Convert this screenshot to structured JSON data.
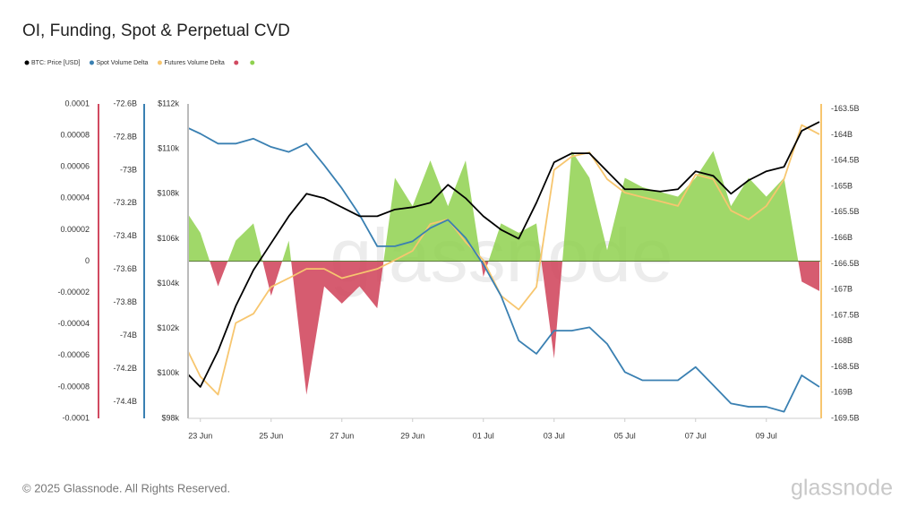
{
  "chart_data": {
    "type": "line",
    "title": "OI, Funding, Spot & Perpetual CVD",
    "categories": [
      null,
      "23 Jun",
      null,
      null,
      null,
      "25 Jun",
      null,
      null,
      null,
      "27 Jun",
      null,
      null,
      null,
      "29 Jun",
      null,
      null,
      null,
      "01 Jul",
      null,
      null,
      null,
      "03 Jul",
      null,
      null,
      null,
      "05 Jul",
      null,
      null,
      null,
      "07 Jul",
      null,
      null,
      null,
      "09 Jul",
      null,
      null,
      null
    ],
    "series": [
      {
        "type": "area",
        "axis": "y4",
        "color": "#8fd14f",
        "negative_color": "#d14a61",
        "values": [
          3.5e-05,
          1.8e-05,
          -1.6e-05,
          1.3e-05,
          2.4e-05,
          -2.2e-05,
          1.3e-05,
          -8.5e-05,
          -1.6e-05,
          -2.7e-05,
          -1.6e-05,
          -3e-05,
          5.3e-05,
          3.5e-05,
          6.4e-05,
          3.5e-05,
          6.4e-05,
          -1e-05,
          2.4e-05,
          1.8e-05,
          2.4e-05,
          -6.2e-05,
          7e-05,
          5.3e-05,
          7e-06,
          5.3e-05,
          4.7e-05,
          4.4e-05,
          4.1e-05,
          5.3e-05,
          7e-05,
          3.5e-05,
          5.3e-05,
          4.1e-05,
          5.3e-05,
          -1.3e-05,
          -1.9e-05
        ]
      },
      {
        "name": "Futures Volume Delta",
        "axis": "y2",
        "color": "#f7c66f",
        "values": [
          -167990000000,
          -168690000000,
          -169040000000,
          -167650000000,
          -167470000000,
          -166950000000,
          -166780000000,
          -166600000000,
          -166600000000,
          -166780000000,
          -166690000000,
          -166600000000,
          -166430000000,
          -166250000000,
          -165730000000,
          -165640000000,
          -166080000000,
          -166430000000,
          -167120000000,
          -167390000000,
          -166950000000,
          -164680000000,
          -164420000000,
          -164340000000,
          -164860000000,
          -165120000000,
          -165210000000,
          -165290000000,
          -165380000000,
          -164770000000,
          -164860000000,
          -165470000000,
          -165640000000,
          -165380000000,
          -164860000000,
          -163810000000,
          -163990000000
        ]
      },
      {
        "name": "Spot Volume Delta",
        "axis": "y3",
        "color": "#3a80b2",
        "values": [
          -72730000000,
          -72780000000,
          -72840000000,
          -72840000000,
          -72810000000,
          -72860000000,
          -72890000000,
          -72840000000,
          -72970000000,
          -73110000000,
          -73270000000,
          -73460000000,
          -73460000000,
          -73430000000,
          -73350000000,
          -73300000000,
          -73410000000,
          -73570000000,
          -73760000000,
          -74030000000,
          -74110000000,
          -73970000000,
          -73970000000,
          -73950000000,
          -74050000000,
          -74220000000,
          -74270000000,
          -74270000000,
          -74270000000,
          -74190000000,
          -74300000000,
          -74410000000,
          -74430000000,
          -74430000000,
          -74460000000,
          -74240000000,
          -74310000000
        ]
      },
      {
        "name": "BTC: Price [USD]",
        "axis": "y",
        "color": "#000000",
        "values": [
          100200,
          99400,
          101000,
          103000,
          104600,
          105800,
          107000,
          108000,
          107800,
          107400,
          107000,
          107000,
          107300,
          107400,
          107600,
          108400,
          107800,
          107000,
          106400,
          106000,
          107600,
          109400,
          109800,
          109800,
          109000,
          108200,
          108200,
          108100,
          108200,
          109000,
          108800,
          108000,
          108600,
          109000,
          109200,
          110800,
          111200
        ]
      }
    ],
    "ylim": [
      98000,
      112000
    ],
    "yticks": [
      {
        "value": 98000,
        "label": "$98k"
      },
      {
        "value": 100000,
        "label": "$100k"
      },
      {
        "value": 102000,
        "label": "$102k"
      },
      {
        "value": 104000,
        "label": "$104k"
      },
      {
        "value": 106000,
        "label": "$106k"
      },
      {
        "value": 108000,
        "label": "$108k"
      },
      {
        "value": 110000,
        "label": "$110k"
      },
      {
        "value": 112000,
        "label": "$112k"
      }
    ],
    "y2lim": [
      -169500000000,
      -163400000000
    ],
    "y2ticks": [
      {
        "value": -169500000000,
        "label": "-169.5B"
      },
      {
        "value": -169000000000,
        "label": "-169B"
      },
      {
        "value": -168500000000,
        "label": "-168.5B"
      },
      {
        "value": -168000000000,
        "label": "-168B"
      },
      {
        "value": -167500000000,
        "label": "-167.5B"
      },
      {
        "value": -167000000000,
        "label": "-167B"
      },
      {
        "value": -166500000000,
        "label": "-166.5B"
      },
      {
        "value": -166000000000,
        "label": "-166B"
      },
      {
        "value": -165500000000,
        "label": "-165.5B"
      },
      {
        "value": -165000000000,
        "label": "-165B"
      },
      {
        "value": -164500000000,
        "label": "-164.5B"
      },
      {
        "value": -164000000000,
        "label": "-164B"
      },
      {
        "value": -163500000000,
        "label": "-163.5B"
      }
    ],
    "y3lim": [
      -74500000000,
      -72600000000
    ],
    "y3ticks": [
      {
        "value": -74400000000,
        "label": "-74.4B"
      },
      {
        "value": -74200000000,
        "label": "-74.2B"
      },
      {
        "value": -74000000000,
        "label": "-74B"
      },
      {
        "value": -73800000000,
        "label": "-73.8B"
      },
      {
        "value": -73600000000,
        "label": "-73.6B"
      },
      {
        "value": -73400000000,
        "label": "-73.4B"
      },
      {
        "value": -73200000000,
        "label": "-73.2B"
      },
      {
        "value": -73000000000,
        "label": "-73B"
      },
      {
        "value": -72800000000,
        "label": "-72.8B"
      },
      {
        "value": -72600000000,
        "label": "-72.6B"
      }
    ],
    "y4lim": [
      -0.0001,
      0.0001
    ],
    "y4ticks": [
      -0.0001,
      -8e-05,
      -6e-05,
      -4e-05,
      -2e-05,
      0,
      2e-05,
      4e-05,
      6e-05,
      8e-05,
      0.0001
    ],
    "grid": false
  },
  "footer": "© 2025 Glassnode. All Rights Reserved.",
  "brand": "glassnode"
}
